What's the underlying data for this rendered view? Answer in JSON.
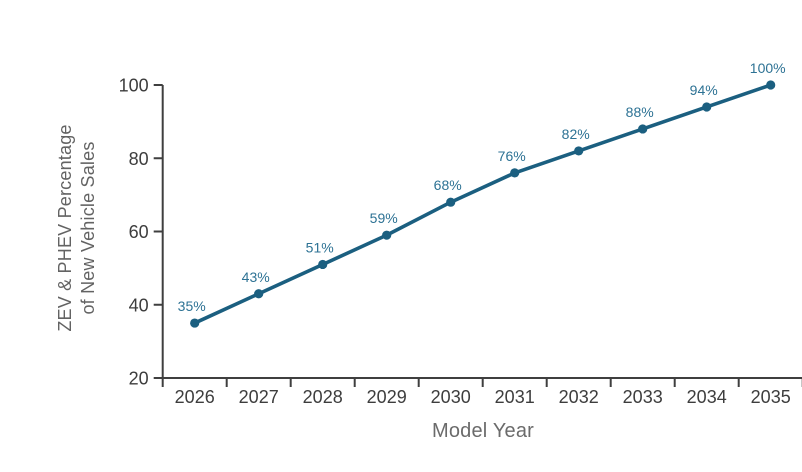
{
  "chart_data": {
    "type": "line",
    "x": [
      "2026",
      "2027",
      "2028",
      "2029",
      "2030",
      "2031",
      "2032",
      "2033",
      "2034",
      "2035"
    ],
    "values": [
      35,
      43,
      51,
      59,
      68,
      76,
      82,
      88,
      94,
      100
    ],
    "point_labels": [
      "35%",
      "43%",
      "51%",
      "59%",
      "68%",
      "76%",
      "82%",
      "88%",
      "94%",
      "100%"
    ],
    "xlabel": "Model Year",
    "ylabel": "ZEV & PHEV Percentage of New Vehicle Sales",
    "ylabel_lines": [
      "ZEV & PHEV Percentage",
      "of New Vehicle Sales"
    ],
    "ylim": [
      20,
      100
    ],
    "yticks": [
      20,
      40,
      60,
      80,
      100
    ],
    "grid": false,
    "legend": "none",
    "colors": {
      "line": "#1b5f80",
      "marker": "#1b5f80",
      "point_label": "#2d7294",
      "axis": "#3f3f3f",
      "tick_label": "#3d3d3d",
      "axis_title": "#666666"
    }
  }
}
